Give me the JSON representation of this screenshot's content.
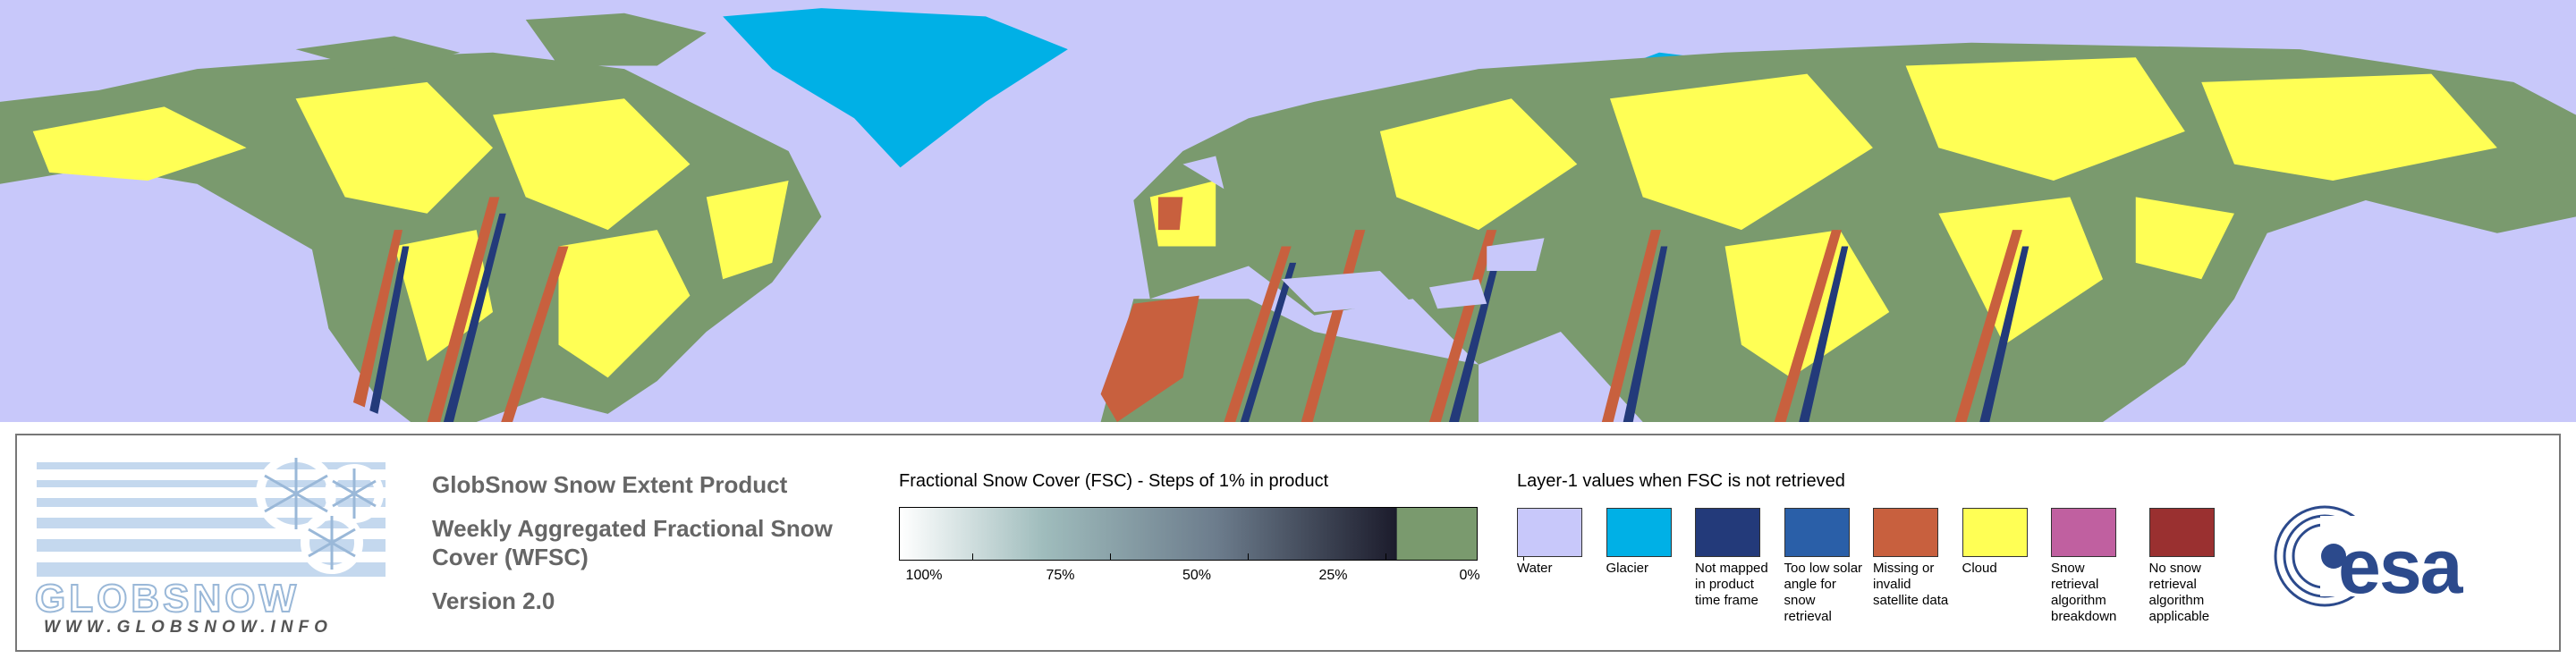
{
  "logo": {
    "name": "GLOBSNOW",
    "url": "WWW.GLOBSNOW.INFO"
  },
  "product": {
    "title": "GlobSnow Snow Extent Product",
    "subtitle": "Weekly Aggregated Fractional Snow Cover (WFSC)",
    "version": "Version 2.0"
  },
  "fsc_legend": {
    "title": "Fractional Snow Cover (FSC) - Steps of 1% in product",
    "ticks": [
      "100%",
      "75%",
      "50%",
      "25%",
      "0%"
    ]
  },
  "layer1_legend": {
    "title": "Layer-1 values when FSC is not retrieved",
    "items": [
      {
        "label": "Water",
        "color": "#c8c8fa"
      },
      {
        "label": "Glacier",
        "color": "#00b0e6"
      },
      {
        "label": "Not mapped in product time frame",
        "color": "#233a7a"
      },
      {
        "label": "Too low solar angle for snow retrieval",
        "color": "#2a5fa8"
      },
      {
        "label": "Missing or invalid satellite data",
        "color": "#c8603e"
      },
      {
        "label": "Cloud",
        "color": "#ffff55"
      },
      {
        "label": "Snow retrieval algorithm breakdown",
        "color": "#c060a0"
      },
      {
        "label": "No snow retrieval algorithm applicable",
        "color": "#9a3030"
      }
    ]
  },
  "esa_logo": "esa"
}
